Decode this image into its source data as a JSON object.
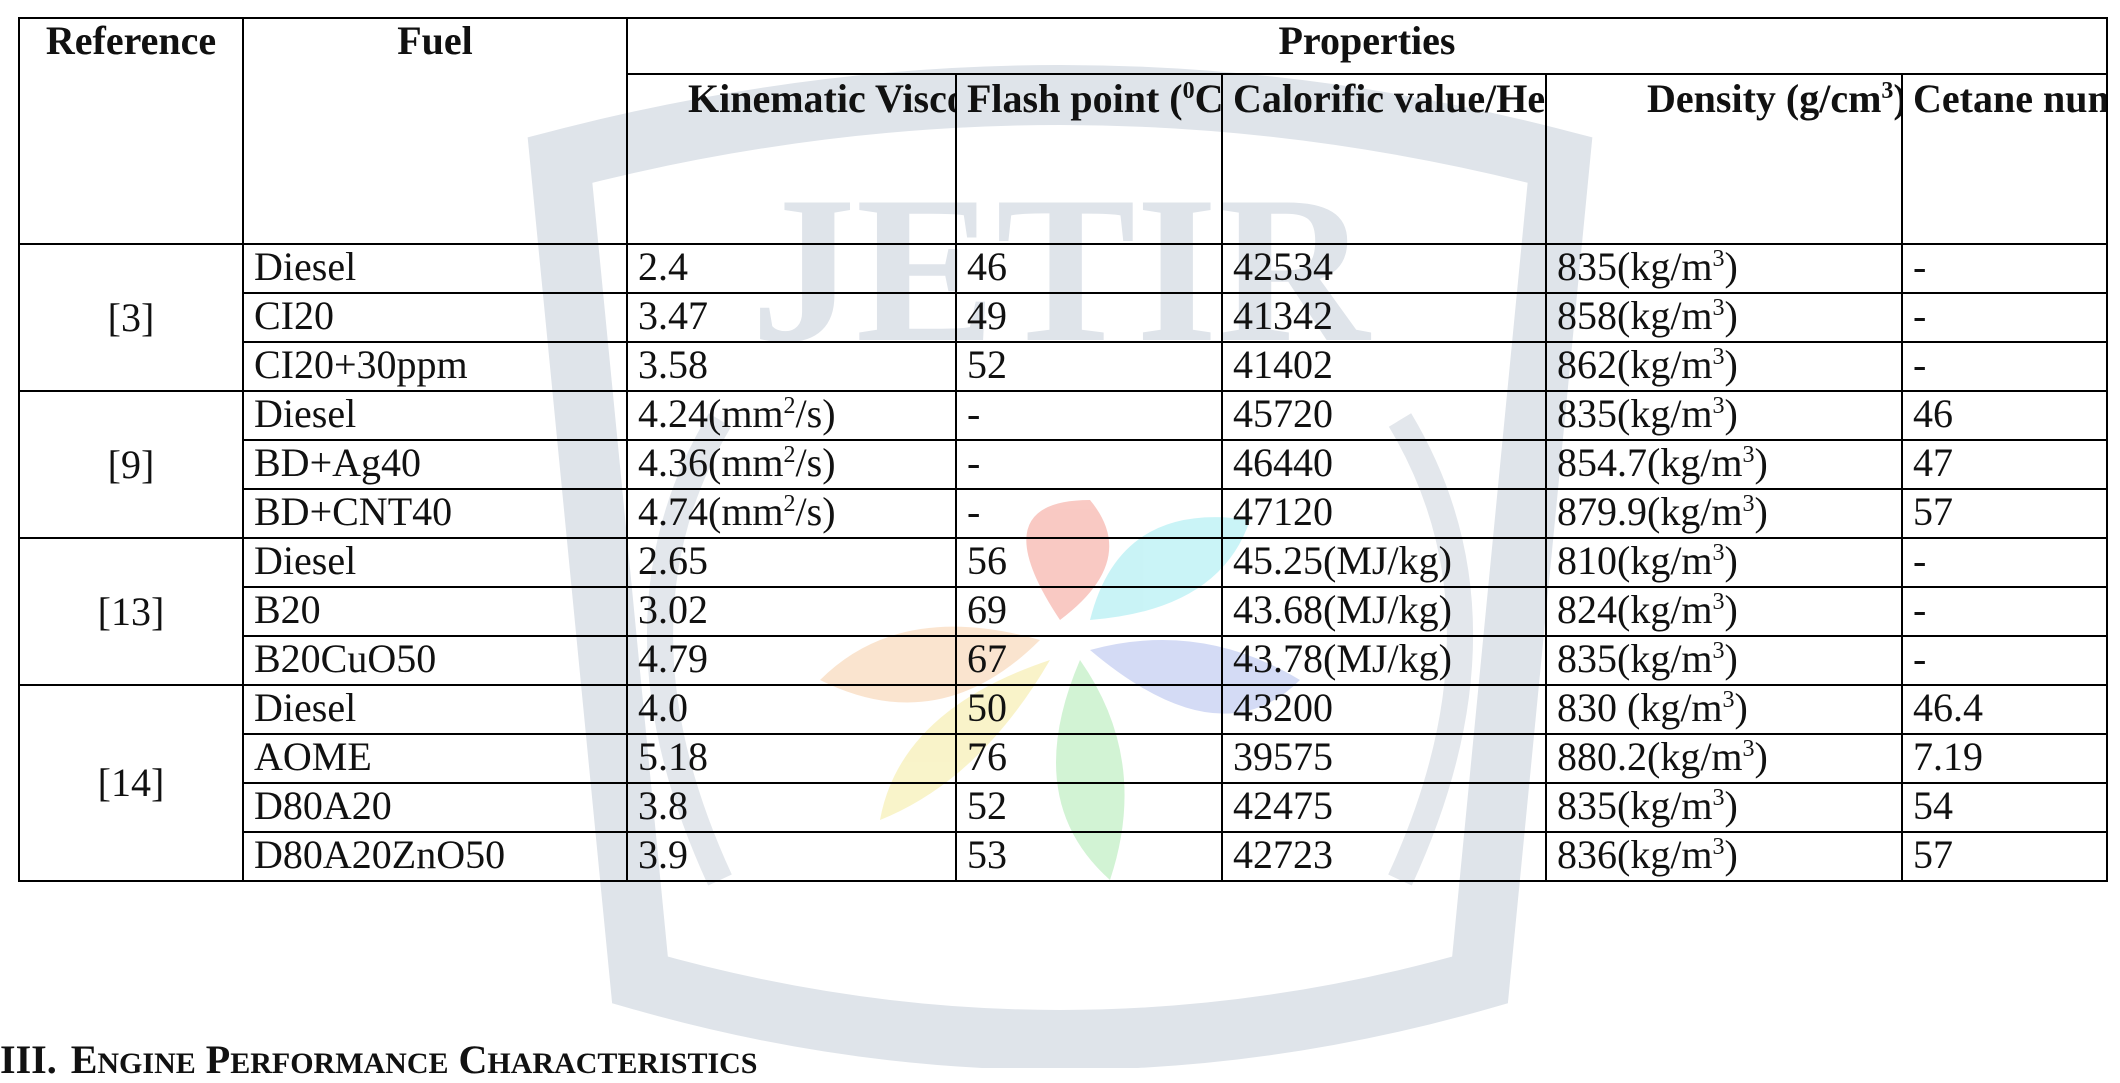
{
  "watermark": {
    "text": "JETIR"
  },
  "table": {
    "headers": {
      "reference": "Reference",
      "fuel": "Fuel",
      "properties": "Properties",
      "kinematic_viscosity": "Kinematic Viscosity (cst)",
      "flash_point_pre": "Flash point (",
      "flash_point_sup": "0",
      "flash_point_post": "C)",
      "calorific": "Calorific value/Heating value(kJ/kg)",
      "density_pre": "Density (g/cm",
      "density_sup": "3",
      "density_post": ")",
      "cetane": "Cetane number"
    },
    "groups": [
      {
        "reference": "[3]",
        "rows": [
          {
            "fuel": "Diesel",
            "viscosity": "2.4",
            "viscosity_unit": "",
            "flash_point": "46",
            "calorific": "42534",
            "density": "835(kg/m",
            "cetane": "-"
          },
          {
            "fuel": "CI20",
            "viscosity": "3.47",
            "viscosity_unit": "",
            "flash_point": "49",
            "calorific": "41342",
            "density": "858(kg/m",
            "cetane": "-"
          },
          {
            "fuel": "CI20+30ppm",
            "viscosity": "3.58",
            "viscosity_unit": "",
            "flash_point": "52",
            "calorific": "41402",
            "density": "862(kg/m",
            "cetane": "-"
          }
        ]
      },
      {
        "reference": "[9]",
        "rows": [
          {
            "fuel": "Diesel",
            "viscosity": "4.24(mm",
            "viscosity_unit": "2",
            "flash_point": "-",
            "calorific": "45720",
            "density": "835(kg/m",
            "cetane": "46"
          },
          {
            "fuel": "BD+Ag40",
            "viscosity": "4.36(mm",
            "viscosity_unit": "2",
            "flash_point": "-",
            "calorific": "46440",
            "density": "854.7(kg/m",
            "cetane": "47"
          },
          {
            "fuel": "BD+CNT40",
            "viscosity": "4.74(mm",
            "viscosity_unit": "2",
            "flash_point": "-",
            "calorific": "47120",
            "density": "879.9(kg/m",
            "cetane": "57"
          }
        ]
      },
      {
        "reference": "[13]",
        "rows": [
          {
            "fuel": "Diesel",
            "viscosity": "2.65",
            "viscosity_unit": "",
            "flash_point": "56",
            "calorific": "45.25(MJ/kg)",
            "density": "810(kg/m",
            "cetane": "-"
          },
          {
            "fuel": "B20",
            "viscosity": "3.02",
            "viscosity_unit": "",
            "flash_point": "69",
            "calorific": "43.68(MJ/kg)",
            "density": "824(kg/m",
            "cetane": "-"
          },
          {
            "fuel": "B20CuO50",
            "viscosity": "4.79",
            "viscosity_unit": "",
            "flash_point": "67",
            "calorific": "43.78(MJ/kg)",
            "density": "835(kg/m",
            "cetane": "-"
          }
        ]
      },
      {
        "reference": "[14]",
        "rows": [
          {
            "fuel": "Diesel",
            "viscosity": "4.0",
            "viscosity_unit": "",
            "flash_point": "50",
            "calorific": "43200",
            "density": "830 (kg/m",
            "cetane": "46.4"
          },
          {
            "fuel": "AOME",
            "viscosity": "5.18",
            "viscosity_unit": "",
            "flash_point": "76",
            "calorific": "39575",
            "density": "880.2(kg/m",
            "cetane": "7.19"
          },
          {
            "fuel": "D80A20",
            "viscosity": "3.8",
            "viscosity_unit": "",
            "flash_point": "52",
            "calorific": "42475",
            "density": "835(kg/m",
            "cetane": "54"
          },
          {
            "fuel": "D80A20ZnO50",
            "viscosity": "3.9",
            "viscosity_unit": "",
            "flash_point": "53",
            "calorific": "42723",
            "density": "836(kg/m",
            "cetane": "57"
          }
        ]
      }
    ],
    "density_sup": "3",
    "density_close": ")",
    "viscosity_close": "/s)"
  },
  "section": {
    "number": "III.",
    "first_letter_1": "E",
    "rest_1": "NGINE",
    "first_letter_2": "P",
    "rest_2": "ERFORMANCE",
    "first_letter_3": "C",
    "rest_3": "HARACTERISTICS"
  },
  "colors": {
    "watermark_gray": "#d9dfe6",
    "petal_red": "#f7b8b0",
    "petal_cyan": "#b8f0f4",
    "petal_blue": "#c6cff2",
    "petal_yellow": "#f7f0b8",
    "petal_green": "#c3efc6",
    "petal_orange": "#f9dcc0"
  }
}
